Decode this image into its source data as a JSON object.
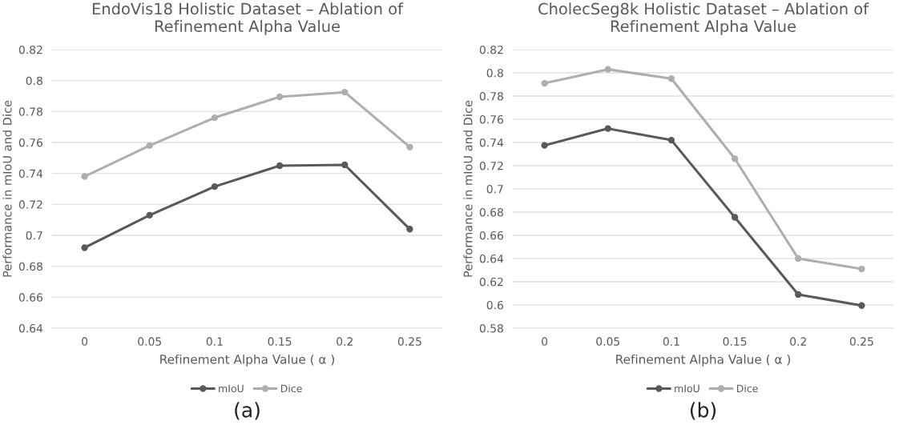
{
  "chart_data": [
    {
      "type": "line",
      "title": "EndoVis18 Holistic Dataset – Ablation of\nRefinement Alpha Value",
      "xlabel": "Refinement Alpha Value ( α )",
      "ylabel": "Performance in mIoU and Dice",
      "categories": [
        "0",
        "0.05",
        "0.1",
        "0.15",
        "0.2",
        "0.25"
      ],
      "series": [
        {
          "name": "mIoU",
          "color": "#595959",
          "values": [
            0.692,
            0.713,
            0.7315,
            0.745,
            0.7455,
            0.704
          ]
        },
        {
          "name": "Dice",
          "color": "#aeaeae",
          "values": [
            0.738,
            0.758,
            0.776,
            0.7895,
            0.7925,
            0.757
          ]
        }
      ],
      "ylim": [
        0.64,
        0.82
      ],
      "yticks": [
        0.64,
        0.66,
        0.68,
        0.7,
        0.72,
        0.74,
        0.76,
        0.78,
        0.8,
        0.82
      ],
      "grid": "y",
      "legend": "bottom",
      "marker": "circle",
      "line_style": "solid",
      "annotations": [
        "(a)"
      ]
    },
    {
      "type": "line",
      "title": "CholecSeg8k Holistic Dataset – Ablation of\nRefinement Alpha Value",
      "xlabel": "Refinement Alpha Value ( α )",
      "ylabel": "Performance in mIoU and Dice",
      "categories": [
        "0",
        "0.05",
        "0.1",
        "0.15",
        "0.2",
        "0.25"
      ],
      "series": [
        {
          "name": "mIoU",
          "color": "#595959",
          "values": [
            0.7375,
            0.752,
            0.742,
            0.6755,
            0.609,
            0.5995
          ]
        },
        {
          "name": "Dice",
          "color": "#aeaeae",
          "values": [
            0.791,
            0.803,
            0.795,
            0.726,
            0.64,
            0.631
          ]
        }
      ],
      "ylim": [
        0.58,
        0.82
      ],
      "yticks": [
        0.58,
        0.6,
        0.62,
        0.64,
        0.66,
        0.68,
        0.7,
        0.72,
        0.74,
        0.76,
        0.78,
        0.8,
        0.82
      ],
      "grid": "y",
      "legend": "bottom",
      "marker": "circle",
      "line_style": "solid",
      "annotations": [
        "(b)"
      ]
    }
  ]
}
